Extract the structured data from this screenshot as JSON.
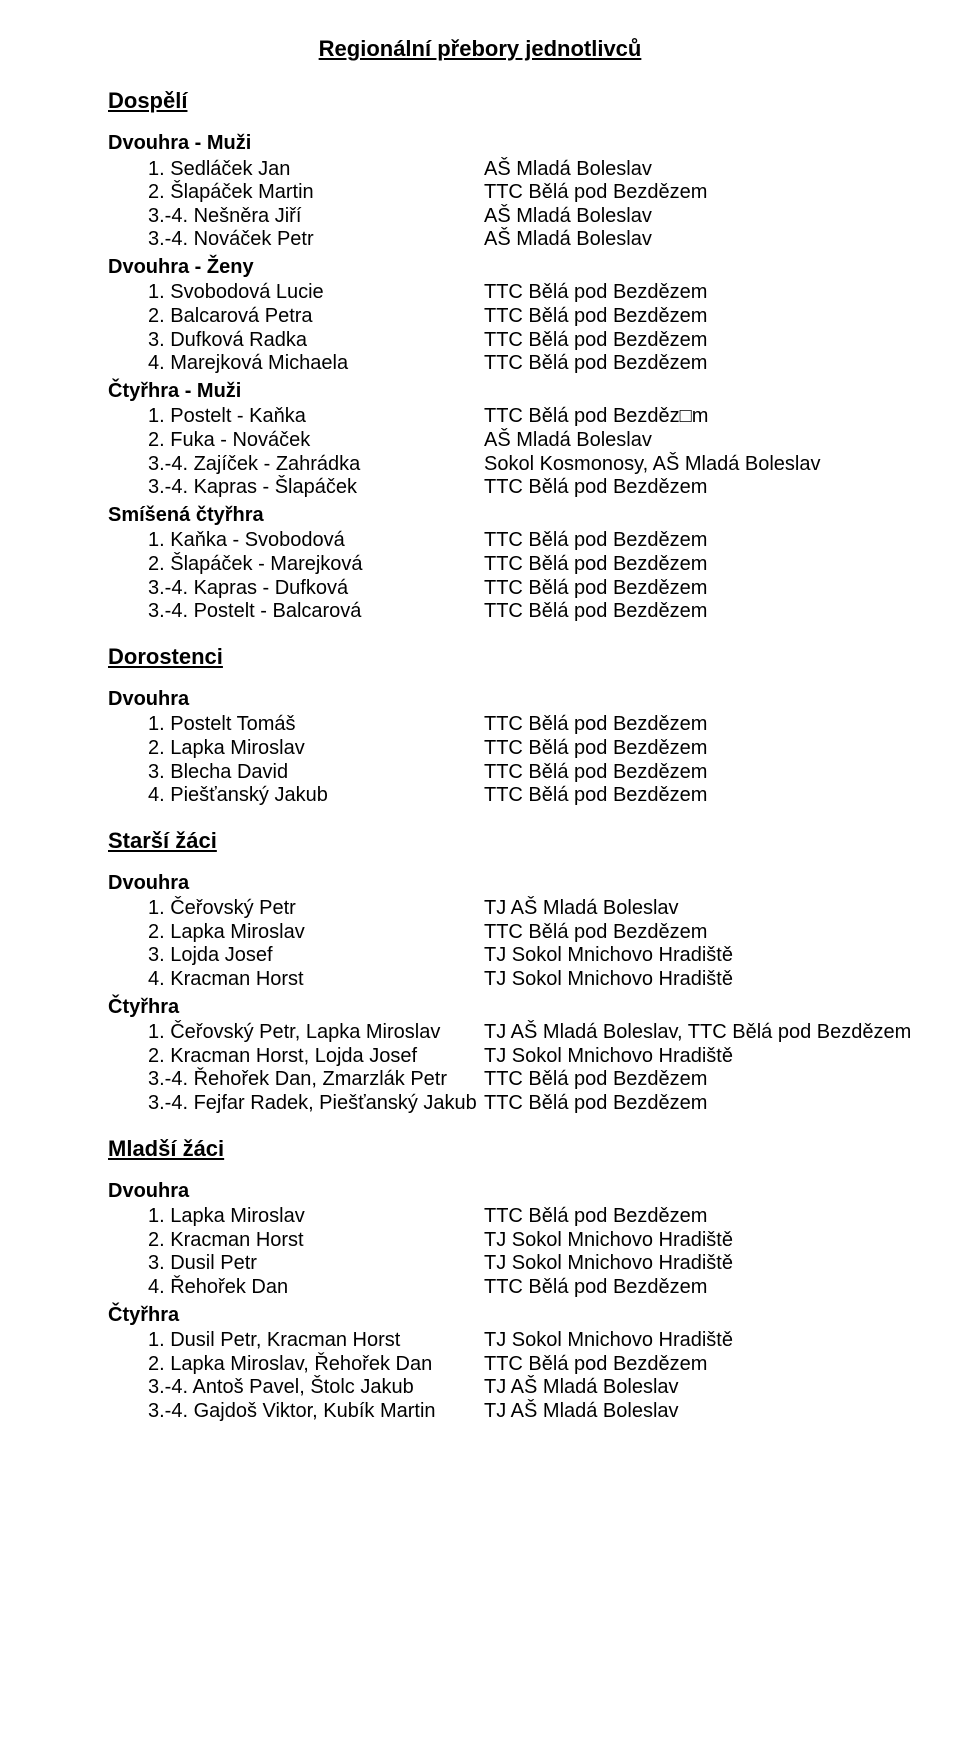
{
  "title": "Regionální přebory jednotlivců",
  "categories": [
    {
      "heading": "Dospělí",
      "groups": [
        {
          "subheading": "Dvouhra - Muži",
          "rows": [
            {
              "l": "1. Sedláček Jan",
              "r": "AŠ Mladá Boleslav"
            },
            {
              "l": "2. Šlapáček Martin",
              "r": "TTC Bělá pod Bezdězem"
            },
            {
              "l": "3.-4. Nešněra Jiří",
              "r": "AŠ Mladá Boleslav"
            },
            {
              "l": "3.-4. Nováček Petr",
              "r": "AŠ Mladá Boleslav"
            }
          ]
        },
        {
          "subheading": "Dvouhra - Ženy",
          "rows": [
            {
              "l": "1. Svobodová Lucie",
              "r": "TTC Bělá pod Bezdězem"
            },
            {
              "l": "2. Balcarová Petra",
              "r": "TTC Bělá pod Bezdězem"
            },
            {
              "l": "3. Dufková Radka",
              "r": "TTC Bělá pod Bezdězem"
            },
            {
              "l": "4. Marejková Michaela",
              "r": "TTC Bělá pod Bezdězem"
            }
          ]
        },
        {
          "subheading": "Čtyřhra - Muži",
          "rows": [
            {
              "l": "1. Postelt - Kaňka",
              "r": "TTC Bělá pod Bezděz□m"
            },
            {
              "l": "2. Fuka - Nováček",
              "r": "AŠ Mladá Boleslav"
            },
            {
              "l": "3.-4. Zajíček - Zahrádka",
              "r": "Sokol Kosmonosy, AŠ Mladá Boleslav"
            },
            {
              "l": "3.-4. Kapras - Šlapáček",
              "r": "TTC Bělá pod Bezdězem"
            }
          ]
        },
        {
          "subheading": "Smíšená čtyřhra",
          "rows": [
            {
              "l": "1. Kaňka - Svobodová",
              "r": "TTC Bělá pod Bezdězem"
            },
            {
              "l": "2. Šlapáček - Marejková",
              "r": "TTC Bělá pod Bezdězem"
            },
            {
              "l": "3.-4. Kapras - Dufková",
              "r": "TTC Bělá pod Bezdězem"
            },
            {
              "l": "3.-4. Postelt - Balcarová",
              "r": "TTC Bělá pod Bezdězem"
            }
          ]
        }
      ]
    },
    {
      "heading": "Dorostenci",
      "groups": [
        {
          "subheading": "Dvouhra",
          "rows": [
            {
              "l": "1. Postelt Tomáš",
              "r": "TTC Bělá pod Bezdězem"
            },
            {
              "l": "2. Lapka Miroslav",
              "r": "TTC Bělá pod Bezdězem"
            },
            {
              "l": "3. Blecha David",
              "r": "TTC Bělá pod Bezdězem"
            },
            {
              "l": "4. Piešťanský Jakub",
              "r": "TTC Bělá pod Bezdězem"
            }
          ]
        }
      ]
    },
    {
      "heading": "Starší žáci",
      "groups": [
        {
          "subheading": "Dvouhra",
          "rows": [
            {
              "l": "1. Čeřovský Petr",
              "r": "TJ AŠ Mladá Boleslav"
            },
            {
              "l": "2. Lapka Miroslav",
              "r": "TTC Bělá pod Bezdězem"
            },
            {
              "l": "3. Lojda Josef",
              "r": "TJ Sokol Mnichovo Hradiště"
            },
            {
              "l": "4. Kracman Horst",
              "r": "TJ Sokol Mnichovo Hradiště"
            }
          ]
        },
        {
          "subheading": "Čtyřhra",
          "rows": [
            {
              "l": "1. Čeřovský Petr, Lapka Miroslav",
              "r": "TJ AŠ Mladá Boleslav, TTC Bělá pod Bezdězem"
            },
            {
              "l": "2. Kracman Horst, Lojda Josef",
              "r": "TJ Sokol Mnichovo Hradiště"
            },
            {
              "l": "3.-4. Řehořek Dan, Zmarzlák Petr",
              "r": "TTC Bělá pod Bezdězem"
            },
            {
              "l": "3.-4. Fejfar Radek, Piešťanský Jakub",
              "r": "TTC Bělá pod Bezdězem"
            }
          ]
        }
      ]
    },
    {
      "heading": "Mladší žáci",
      "groups": [
        {
          "subheading": "Dvouhra",
          "rows": [
            {
              "l": "1. Lapka Miroslav",
              "r": "TTC Bělá pod Bezdězem"
            },
            {
              "l": "2. Kracman Horst",
              "r": "TJ Sokol Mnichovo Hradiště"
            },
            {
              "l": "3. Dusil Petr",
              "r": "TJ Sokol Mnichovo Hradiště"
            },
            {
              "l": "4. Řehořek Dan",
              "r": "TTC Bělá pod Bezdězem"
            }
          ]
        },
        {
          "subheading": "Čtyřhra",
          "rows": [
            {
              "l": "1. Dusil Petr, Kracman Horst",
              "r": "TJ Sokol Mnichovo Hradiště"
            },
            {
              "l": "2. Lapka Miroslav, Řehořek Dan",
              "r": "TTC Bělá pod Bezdězem"
            },
            {
              "l": "3.-4. Antoš Pavel, Štolc Jakub",
              "r": "TJ AŠ Mladá Boleslav"
            },
            {
              "l": "3.-4. Gajdoš Viktor, Kubík Martin",
              "r": "TJ AŠ Mladá Boleslav"
            }
          ]
        }
      ]
    }
  ]
}
